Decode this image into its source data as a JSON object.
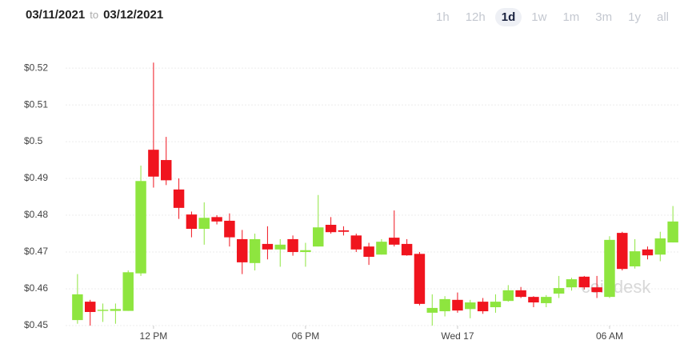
{
  "header": {
    "from": "03/11/2021",
    "to_word": "to",
    "to": "03/12/2021"
  },
  "ranges": {
    "options": [
      "1h",
      "12h",
      "1d",
      "1w",
      "1m",
      "3m",
      "1y",
      "all"
    ],
    "selected": "1d"
  },
  "chart_data": {
    "type": "candlestick",
    "watermark": "coindesk",
    "x": [
      9,
      9.5,
      10,
      10.5,
      11,
      11.5,
      12,
      12.5,
      13,
      13.5,
      14,
      14.5,
      15,
      15.5,
      16,
      16.5,
      17,
      17.5,
      18,
      18.5,
      19,
      19.5,
      20,
      20.5,
      21,
      21.5,
      22,
      22.5,
      23,
      23.5,
      24,
      24.5,
      25,
      25.5,
      26,
      26.5,
      27,
      27.5,
      28,
      28.5,
      29,
      29.5,
      30,
      30.5,
      31,
      31.5,
      32,
      32.5
    ],
    "open": [
      0.4515,
      0.4565,
      0.454,
      0.454,
      0.454,
      0.4642,
      0.4978,
      0.495,
      0.487,
      0.4802,
      0.4763,
      0.4795,
      0.4785,
      0.4735,
      0.467,
      0.4722,
      0.4707,
      0.4735,
      0.47,
      0.4715,
      0.4774,
      0.4759,
      0.4745,
      0.4715,
      0.4693,
      0.4739,
      0.4722,
      0.4695,
      0.4535,
      0.4539,
      0.457,
      0.4545,
      0.4565,
      0.455,
      0.4567,
      0.4596,
      0.4578,
      0.4561,
      0.4587,
      0.4604,
      0.4633,
      0.4604,
      0.4578,
      0.4752,
      0.4661,
      0.4707,
      0.4693,
      0.4726
    ],
    "high": [
      0.464,
      0.457,
      0.456,
      0.456,
      0.465,
      0.4935,
      0.5215,
      0.5013,
      0.49,
      0.481,
      0.4835,
      0.48,
      0.4805,
      0.476,
      0.475,
      0.477,
      0.4735,
      0.4745,
      0.4725,
      0.4855,
      0.4795,
      0.477,
      0.475,
      0.4725,
      0.4735,
      0.4813,
      0.4735,
      0.47,
      0.4585,
      0.458,
      0.459,
      0.457,
      0.4575,
      0.4585,
      0.461,
      0.4605,
      0.458,
      0.4583,
      0.4635,
      0.463,
      0.4635,
      0.4635,
      0.4743,
      0.4755,
      0.4735,
      0.4715,
      0.4755,
      0.4825
    ],
    "low": [
      0.4505,
      0.45,
      0.451,
      0.4505,
      0.454,
      0.4635,
      0.4875,
      0.4882,
      0.479,
      0.474,
      0.472,
      0.4775,
      0.4715,
      0.464,
      0.465,
      0.468,
      0.466,
      0.469,
      0.466,
      0.4715,
      0.475,
      0.4745,
      0.47,
      0.4665,
      0.4693,
      0.4715,
      0.469,
      0.4555,
      0.45,
      0.4525,
      0.4535,
      0.452,
      0.4532,
      0.4535,
      0.4565,
      0.4575,
      0.455,
      0.455,
      0.4575,
      0.4595,
      0.4598,
      0.4575,
      0.4575,
      0.465,
      0.4655,
      0.468,
      0.4675,
      0.4726
    ],
    "close": [
      0.4585,
      0.4537,
      0.4543,
      0.4545,
      0.4645,
      0.4893,
      0.4905,
      0.4895,
      0.482,
      0.4763,
      0.4793,
      0.4783,
      0.474,
      0.4672,
      0.4735,
      0.4707,
      0.472,
      0.47,
      0.4705,
      0.4767,
      0.4754,
      0.4755,
      0.4707,
      0.4687,
      0.4728,
      0.472,
      0.4691,
      0.4559,
      0.4548,
      0.4572,
      0.4541,
      0.4563,
      0.4539,
      0.4565,
      0.4596,
      0.4578,
      0.4563,
      0.4578,
      0.4602,
      0.4626,
      0.4604,
      0.4591,
      0.4733,
      0.4654,
      0.4702,
      0.4691,
      0.4737,
      0.4783
    ],
    "up_color": "#8ee53f",
    "down_color": "#f0141e",
    "xlim": [
      8.53,
      32.78
    ],
    "xticks": [
      {
        "value": 12,
        "label": "12 PM"
      },
      {
        "value": 18,
        "label": "06 PM"
      },
      {
        "value": 24,
        "label": "Wed 17"
      },
      {
        "value": 30,
        "label": "06 AM"
      }
    ],
    "ylim": [
      0.45,
      0.5235
    ],
    "yticks": [
      {
        "value": 0.45,
        "label": "$0.45"
      },
      {
        "value": 0.46,
        "label": "$0.46"
      },
      {
        "value": 0.47,
        "label": "$0.47"
      },
      {
        "value": 0.48,
        "label": "$0.48"
      },
      {
        "value": 0.49,
        "label": "$0.49"
      },
      {
        "value": 0.5,
        "label": "$0.5"
      },
      {
        "value": 0.51,
        "label": "$0.51"
      },
      {
        "value": 0.52,
        "label": "$0.52"
      }
    ],
    "grid": true
  }
}
